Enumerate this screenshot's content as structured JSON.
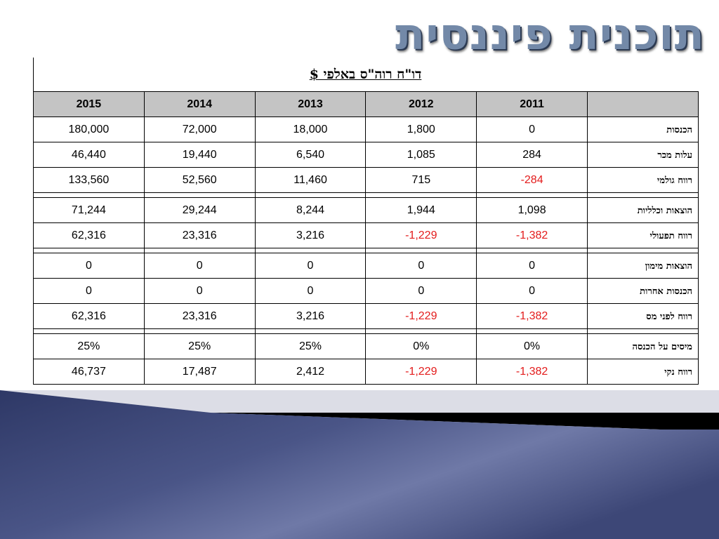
{
  "slide": {
    "title": "תוכנית פיננסית"
  },
  "report": {
    "caption": "דו\"ח רוה\"ס באלפי $",
    "years": [
      "2011",
      "2012",
      "2013",
      "2014",
      "2015"
    ],
    "rows": [
      {
        "label": "הכנסות",
        "values": [
          "0",
          "1,800",
          "18,000",
          "72,000",
          "180,000"
        ],
        "negative": [
          false,
          false,
          false,
          false,
          false
        ]
      },
      {
        "label": "עלות מכר",
        "values": [
          "284",
          "1,085",
          "6,540",
          "19,440",
          "46,440"
        ],
        "negative": [
          false,
          false,
          false,
          false,
          false
        ]
      },
      {
        "label": "רווח גולמי",
        "values": [
          "-284",
          "715",
          "11,460",
          "52,560",
          "133,560"
        ],
        "negative": [
          true,
          false,
          false,
          false,
          false
        ]
      },
      {
        "separator": true
      },
      {
        "label": "הוצאות וכלליות",
        "values": [
          "1,098",
          "1,944",
          "8,244",
          "29,244",
          "71,244"
        ],
        "negative": [
          false,
          false,
          false,
          false,
          false
        ]
      },
      {
        "label": "רווח תפעולי",
        "values": [
          "-1,382",
          "-1,229",
          "3,216",
          "23,316",
          "62,316"
        ],
        "negative": [
          true,
          true,
          false,
          false,
          false
        ]
      },
      {
        "separator": true
      },
      {
        "label": "הוצאות מימון",
        "values": [
          "0",
          "0",
          "0",
          "0",
          "0"
        ],
        "negative": [
          false,
          false,
          false,
          false,
          false
        ]
      },
      {
        "label": "הכנסות אחרות",
        "values": [
          "0",
          "0",
          "0",
          "0",
          "0"
        ],
        "negative": [
          false,
          false,
          false,
          false,
          false
        ]
      },
      {
        "label": "רווח לפני מס",
        "values": [
          "-1,382",
          "-1,229",
          "3,216",
          "23,316",
          "62,316"
        ],
        "negative": [
          true,
          true,
          false,
          false,
          false
        ]
      },
      {
        "separator": true
      },
      {
        "label": "מיסים על הכנסה",
        "values": [
          "0%",
          "0%",
          "25%",
          "25%",
          "25%"
        ],
        "negative": [
          false,
          false,
          false,
          false,
          false
        ]
      },
      {
        "label": "רווח נקי",
        "values": [
          "-1,382",
          "-1,229",
          "2,412",
          "17,487",
          "46,737"
        ],
        "negative": [
          true,
          true,
          false,
          false,
          false
        ]
      }
    ]
  },
  "colors": {
    "title": "#7389a8",
    "header_fill": "#c4c4c4",
    "negative": "#e31b1b",
    "deco_navy": "#3b4674",
    "deco_light": "#dcdde6"
  }
}
